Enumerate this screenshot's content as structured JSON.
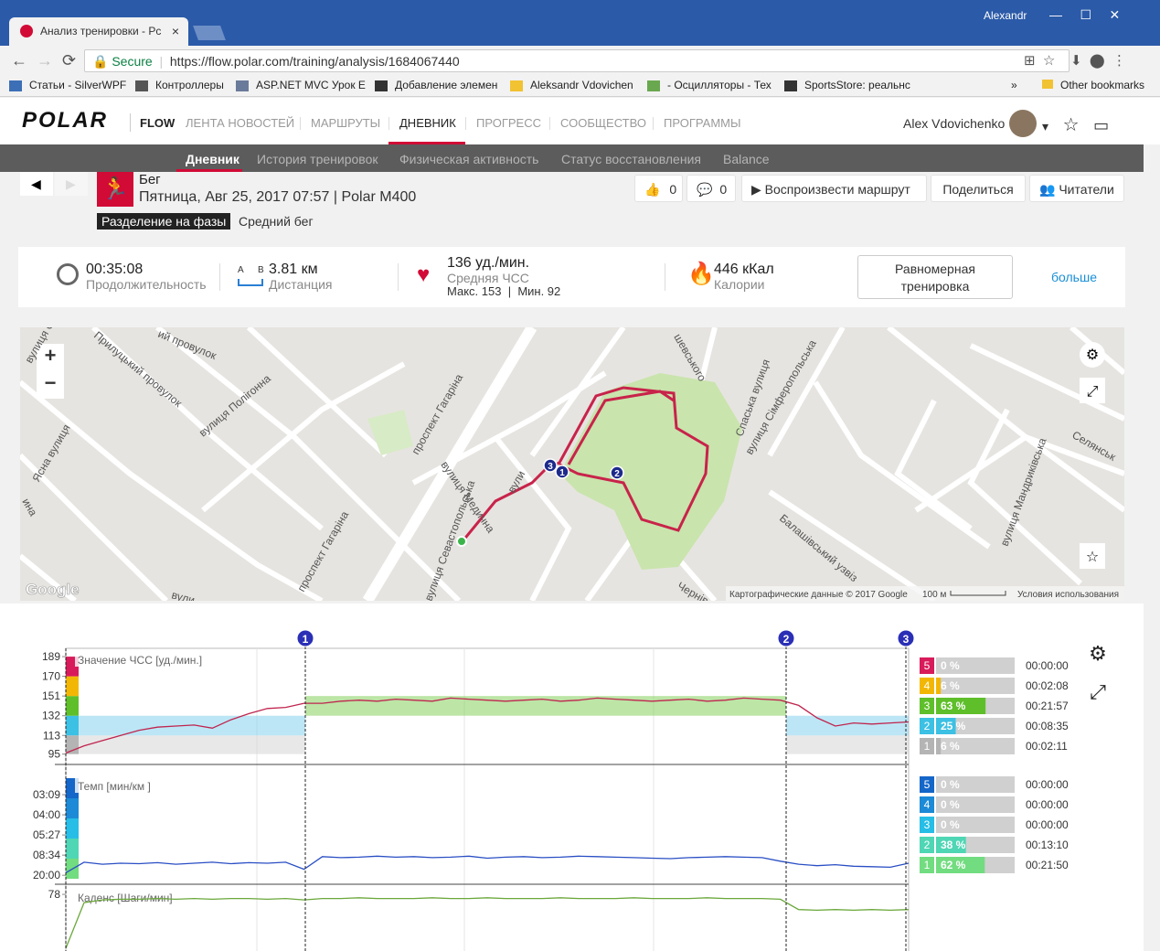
{
  "browser": {
    "tab_title": "Анализ тренировки - Рс",
    "user": "Alexandr",
    "secure": "Secure",
    "url": "https://flow.polar.com/training/analysis/1684067440",
    "bookmarks": [
      "Статьи - SilverWPF",
      "Контроллеры",
      "ASP.NET MVC Урок E",
      "Добавление элемен",
      "Aleksandr Vdovichen",
      "- Осцилляторы - Тех",
      "SportsStore: реальнс"
    ],
    "more": "»",
    "other_bookmarks": "Other bookmarks"
  },
  "nav": {
    "logo": "POLAR",
    "brand": "FLOW",
    "items": [
      "ЛЕНТА НОВОСТЕЙ",
      "МАРШРУТЫ",
      "ДНЕВНИК",
      "ПРОГРЕСС",
      "СООБЩЕСТВО",
      "ПРОГРАММЫ"
    ],
    "user_name": "Alex Vdovichenko"
  },
  "subnav": [
    "Дневник",
    "История тренировок",
    "Физическая активность",
    "Статус восстановления",
    "Balance"
  ],
  "workout": {
    "sport": "Бег",
    "date_device": "Пятница, Авг 25, 2017 07:57 | Polar M400",
    "phase_button": "Разделение на фазы",
    "phase_type": "Средний бег",
    "likes": 0,
    "comments": 0,
    "replay": "Воспроизвести маршрут",
    "share": "Поделиться",
    "followers": "Читатели"
  },
  "summary": {
    "duration": "00:35:08",
    "duration_label": "Продолжительность",
    "point_a": "A",
    "point_b": "B",
    "distance": "3.81 км",
    "distance_label": "Дистанция",
    "avg_hr": "136 уд./мин.",
    "avg_hr_label": "Средняя ЧСС",
    "max_hr": "Макс. 153",
    "hr_separator": "|",
    "min_hr": "Мин. 92",
    "calories": "446 кКал",
    "calories_label": "Калории",
    "benefit": "Равномерная тренировка",
    "more": "больше"
  },
  "map": {
    "labels": [
      "вулиця Сіока",
      "Прилуцький провулок",
      "ий провулок",
      "вулиця Полігонна",
      "проспект Гагаріна",
      "вулиця Медична",
      "вули",
      "вулиця Севастопольська",
      "проспект Гагаріна",
      "шевського",
      "Спаська вулиця",
      "вулиця Сімферопольська",
      "Селянськ",
      "вулиця Мандриківська",
      "Балашівський узвіз",
      "Чернівец",
      "Ясна вулиця",
      "вули",
      "ина"
    ],
    "zoom_in": "+",
    "zoom_out": "−",
    "markers": [
      "3",
      "1",
      "2"
    ],
    "google": "Google",
    "attribution": "Картографические данные © 2017 Google",
    "scale": "100 м",
    "terms": "Условия использования"
  },
  "charts": {
    "laps": [
      "1",
      "2",
      "3"
    ],
    "hr": {
      "title": "Значение ЧСС [уд./мин.]",
      "ylim": [
        85,
        197
      ],
      "yticks": [
        95,
        113,
        132,
        151,
        170,
        189
      ],
      "values": [
        96,
        103,
        108,
        113,
        118,
        121,
        122,
        123,
        120,
        128,
        134,
        139,
        140,
        144,
        144,
        146,
        147,
        146,
        148,
        147,
        146,
        149,
        148,
        147,
        146,
        147,
        148,
        146,
        147,
        149,
        148,
        147,
        146,
        147,
        148,
        146,
        147,
        149,
        148,
        147,
        142,
        130,
        122,
        125,
        124,
        125,
        126
      ],
      "color": "#c0244e",
      "zones": [
        {
          "zone": 5,
          "percent": 0,
          "percent_label": "0 %",
          "time": "00:00:00",
          "color": "#d81b5b"
        },
        {
          "zone": 4,
          "percent": 6,
          "percent_label": "6 %",
          "time": "00:02:08",
          "color": "#f2b705"
        },
        {
          "zone": 3,
          "percent": 63,
          "percent_label": "63 %",
          "time": "00:21:57",
          "color": "#5fbf2a"
        },
        {
          "zone": 2,
          "percent": 25,
          "percent_label": "25 %",
          "time": "00:08:35",
          "color": "#3cc0e4"
        },
        {
          "zone": 1,
          "percent": 6,
          "percent_label": "6 %",
          "time": "00:02:11",
          "color": "#b4b4b4"
        }
      ]
    },
    "pace": {
      "title": "Темп [мин/км ]",
      "ylim": [
        1.4,
        23
      ],
      "yticks": [
        {
          "value": 19,
          "label": "03:09"
        },
        {
          "value": 15,
          "label": "04:00"
        },
        {
          "value": 11,
          "label": "05:27"
        },
        {
          "value": 7,
          "label": "08:34"
        },
        {
          "value": 3,
          "label": "20:00"
        }
      ],
      "values": [
        3.5,
        5.6,
        5.2,
        5.4,
        5.3,
        5.5,
        5.2,
        5.4,
        5.6,
        5.3,
        5.5,
        5.4,
        5.6,
        4.2,
        6.7,
        6.5,
        6.6,
        6.8,
        6.6,
        6.7,
        6.5,
        6.6,
        6.8,
        6.4,
        6.6,
        6.7,
        6.5,
        6.6,
        6.8,
        6.7,
        6.6,
        6.5,
        6.4,
        6.3,
        6.5,
        6.6,
        6.7,
        6.6,
        6.5,
        5.8,
        5.2,
        4.9,
        5.1,
        4.8,
        4.7,
        4.6,
        5.4
      ],
      "color": "#2a4fc4",
      "zones": [
        {
          "zone": 5,
          "percent": 0,
          "percent_label": "0 %",
          "time": "00:00:00",
          "color": "#1466c8"
        },
        {
          "zone": 4,
          "percent": 0,
          "percent_label": "0 %",
          "time": "00:00:00",
          "color": "#1c8ad6"
        },
        {
          "zone": 3,
          "percent": 0,
          "percent_label": "0 %",
          "time": "00:00:00",
          "color": "#26bde6"
        },
        {
          "zone": 2,
          "percent": 38,
          "percent_label": "38 %",
          "time": "00:13:10",
          "color": "#4fd6b4"
        },
        {
          "zone": 1,
          "percent": 62,
          "percent_label": "62 %",
          "time": "00:21:50",
          "color": "#72dc80"
        }
      ]
    },
    "cadence": {
      "title": "Каденс [Шаги/мин]",
      "ylim": [
        0,
        90
      ],
      "yticks": [
        78
      ],
      "values": [
        0,
        66,
        70,
        71,
        71,
        72,
        71,
        72,
        71,
        72,
        72,
        71,
        72,
        70,
        72,
        72,
        73,
        72,
        72,
        72,
        73,
        72,
        72,
        73,
        72,
        72,
        72,
        73,
        72,
        72,
        72,
        73,
        72,
        72,
        72,
        73,
        72,
        72,
        72,
        71,
        56,
        55,
        56,
        55,
        56,
        55,
        56
      ],
      "color": "#6aa83a"
    }
  }
}
